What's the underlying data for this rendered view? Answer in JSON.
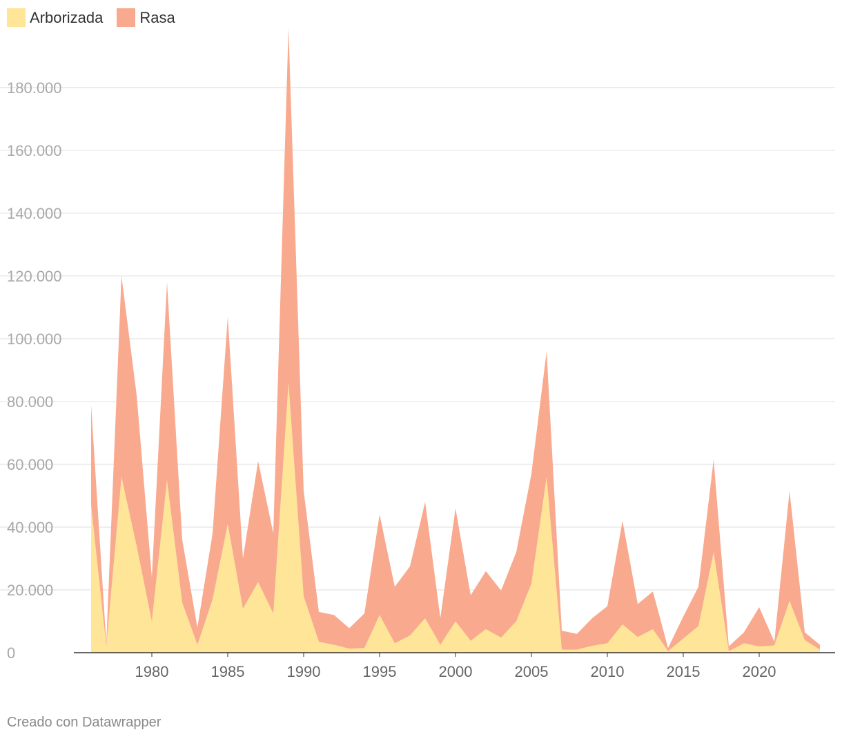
{
  "legend": {
    "items": [
      {
        "label": "Arborizada",
        "color": "#fee597"
      },
      {
        "label": "Rasa",
        "color": "#f9a98e"
      }
    ]
  },
  "credit": "Creado con Datawrapper",
  "chart_data": {
    "type": "area",
    "stacked": true,
    "title": "",
    "xlabel": "",
    "ylabel": "",
    "x": [
      1976,
      1977,
      1978,
      1979,
      1980,
      1981,
      1982,
      1983,
      1984,
      1985,
      1986,
      1987,
      1988,
      1989,
      1990,
      1991,
      1992,
      1993,
      1994,
      1995,
      1996,
      1997,
      1998,
      1999,
      2000,
      2001,
      2002,
      2003,
      2004,
      2005,
      2006,
      2007,
      2008,
      2009,
      2010,
      2011,
      2012,
      2013,
      2014,
      2015,
      2016,
      2017,
      2018,
      2019,
      2020,
      2021,
      2022,
      2023,
      2024
    ],
    "series": [
      {
        "name": "Arborizada",
        "color": "#fee597",
        "values": [
          47000,
          2000,
          56000,
          34000,
          10000,
          55000,
          16000,
          2500,
          17000,
          41000,
          14000,
          22500,
          12500,
          86000,
          18000,
          3500,
          2500,
          1300,
          1500,
          12000,
          3000,
          5500,
          11000,
          2500,
          10000,
          3800,
          7500,
          4800,
          10000,
          22000,
          56000,
          1000,
          1000,
          2200,
          3000,
          9000,
          5000,
          7500,
          500,
          4500,
          8500,
          32000,
          500,
          3000,
          2000,
          2300,
          16500,
          4000,
          1000
        ]
      },
      {
        "name": "Rasa",
        "color": "#f9a98e",
        "values": [
          32000,
          1000,
          64000,
          48000,
          14000,
          63000,
          20000,
          5500,
          21000,
          66000,
          16000,
          38500,
          25500,
          113000,
          33500,
          9500,
          9500,
          6500,
          11000,
          32000,
          18000,
          22000,
          37000,
          8500,
          36000,
          14500,
          18500,
          15000,
          22000,
          35000,
          40000,
          6000,
          5000,
          8800,
          11800,
          33000,
          10500,
          12000,
          1000,
          7000,
          12500,
          29500,
          1500,
          3500,
          12500,
          1200,
          35000,
          2500,
          1500
        ]
      }
    ],
    "ylim": [
      0,
      198000
    ],
    "yticks": [
      "0",
      "20.000",
      "40.000",
      "60.000",
      "80.000",
      "100.000",
      "120.000",
      "140.000",
      "160.000",
      "180.000"
    ],
    "xticks": [
      "1980",
      "1985",
      "1990",
      "1995",
      "2000",
      "2005",
      "2010",
      "2015",
      "2020"
    ],
    "grid": true,
    "legend_position": "top-left"
  }
}
